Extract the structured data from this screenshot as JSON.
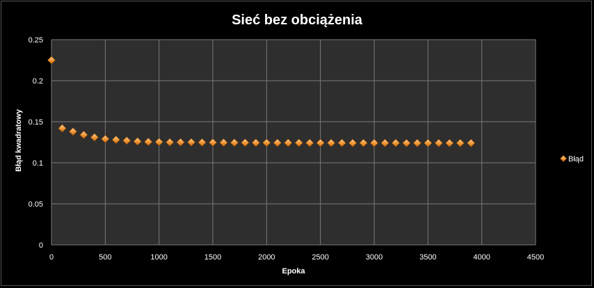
{
  "chart_data": {
    "type": "scatter",
    "title": "Sieć bez obciążenia",
    "xlabel": "Epoka",
    "ylabel": "Błąd  kwadratowy",
    "xlim": [
      0,
      4500
    ],
    "ylim": [
      0,
      0.25
    ],
    "x_ticks": [
      "0",
      "500",
      "1000",
      "1500",
      "2000",
      "2500",
      "3000",
      "3500",
      "4000",
      "4500"
    ],
    "y_ticks": [
      "0",
      "0.05",
      "0.1",
      "0.15",
      "0.2",
      "0.25"
    ],
    "grid": true,
    "legend_position": "right",
    "series": [
      {
        "name": "Błąd",
        "marker": "diamond",
        "color": "#f29a3a",
        "x": [
          0,
          100,
          200,
          300,
          400,
          500,
          600,
          700,
          800,
          900,
          1000,
          1100,
          1200,
          1300,
          1400,
          1500,
          1600,
          1700,
          1800,
          1900,
          2000,
          2100,
          2200,
          2300,
          2400,
          2500,
          2600,
          2700,
          2800,
          2900,
          3000,
          3100,
          3200,
          3300,
          3400,
          3500,
          3600,
          3700,
          3800,
          3900
        ],
        "y": [
          0.225,
          0.142,
          0.138,
          0.134,
          0.131,
          0.129,
          0.128,
          0.127,
          0.126,
          0.1255,
          0.1253,
          0.125,
          0.125,
          0.125,
          0.1248,
          0.1247,
          0.1246,
          0.1245,
          0.1245,
          0.1244,
          0.1244,
          0.1243,
          0.1243,
          0.1243,
          0.1242,
          0.1242,
          0.1242,
          0.1242,
          0.1241,
          0.1241,
          0.1241,
          0.1241,
          0.1241,
          0.124,
          0.124,
          0.124,
          0.124,
          0.124,
          0.124,
          0.124
        ]
      }
    ]
  },
  "colors": {
    "background": "#000000",
    "plot_area": "#2e2e2e",
    "grid": "#7a7a7a",
    "text": "#ffffff"
  }
}
